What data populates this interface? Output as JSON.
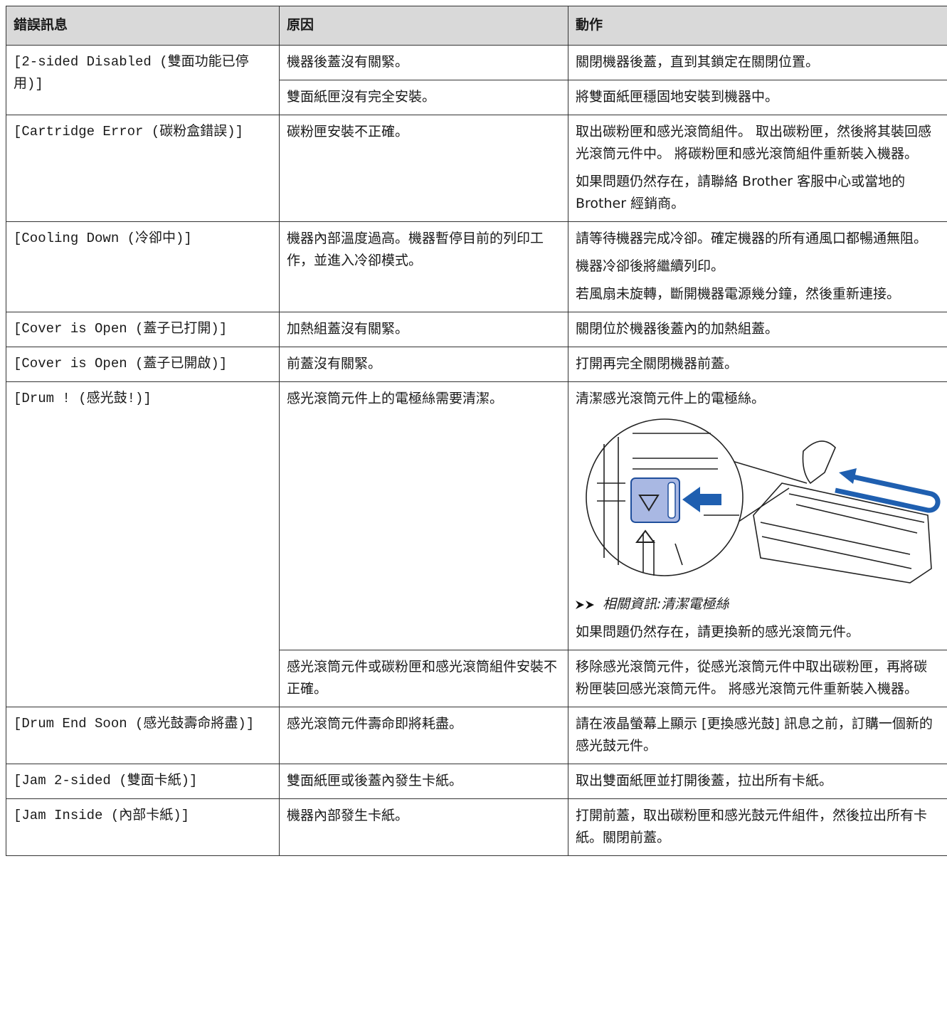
{
  "table": {
    "headers": [
      "錯誤訊息",
      "原因",
      "動作"
    ],
    "rows": [
      {
        "message": "[2-sided Disabled (雙面功能已停用)]",
        "entries": [
          {
            "cause": "機器後蓋沒有關緊。",
            "action": [
              "關閉機器後蓋，直到其鎖定在關閉位置。"
            ]
          },
          {
            "cause": "雙面紙匣沒有完全安裝。",
            "action": [
              "將雙面紙匣穩固地安裝到機器中。"
            ]
          }
        ]
      },
      {
        "message": "[Cartridge Error (碳粉盒錯誤)]",
        "entries": [
          {
            "cause": "碳粉匣安裝不正確。",
            "action": [
              "取出碳粉匣和感光滾筒組件。 取出碳粉匣，然後將其裝回感光滾筒元件中。 將碳粉匣和感光滾筒組件重新裝入機器。",
              "如果問題仍然存在，請聯絡 Brother 客服中心或當地的 Brother 經銷商。"
            ]
          }
        ]
      },
      {
        "message": "[Cooling Down (冷卻中)]",
        "entries": [
          {
            "cause": "機器內部溫度過高。機器暫停目前的列印工作，並進入冷卻模式。",
            "action": [
              "請等待機器完成冷卻。確定機器的所有通風口都暢通無阻。",
              "機器冷卻後將繼續列印。",
              "若風扇未旋轉，斷開機器電源幾分鐘，然後重新連接。"
            ]
          }
        ]
      },
      {
        "message": "[Cover is Open (蓋子已打開)]",
        "entries": [
          {
            "cause": "加熱組蓋沒有關緊。",
            "action": [
              "關閉位於機器後蓋內的加熱組蓋。"
            ]
          }
        ]
      },
      {
        "message": "[Cover is Open (蓋子已開啟)]",
        "entries": [
          {
            "cause": "前蓋沒有關緊。",
            "action": [
              "打開再完全關閉機器前蓋。"
            ]
          }
        ]
      },
      {
        "message": "[Drum ! (感光鼓!)]",
        "entries": [
          {
            "cause": "感光滾筒元件上的電極絲需要清潔。",
            "action": [
              "清潔感光滾筒元件上的電極絲。"
            ],
            "related_link": "相關資訊:清潔電極絲",
            "action_after": [
              "如果問題仍然存在，請更換新的感光滾筒元件。"
            ]
          },
          {
            "cause": "感光滾筒元件或碳粉匣和感光滾筒組件安裝不正確。",
            "action": [
              "移除感光滾筒元件，從感光滾筒元件中取出碳粉匣，再將碳粉匣裝回感光滾筒元件。 將感光滾筒元件重新裝入機器。"
            ]
          }
        ]
      },
      {
        "message": "[Drum End Soon (感光鼓壽命將盡)]",
        "entries": [
          {
            "cause": "感光滾筒元件壽命即將耗盡。",
            "action": [
              "請在液晶螢幕上顯示 [更換感光鼓] 訊息之前，訂購一個新的感光鼓元件。"
            ]
          }
        ]
      },
      {
        "message": "[Jam 2-sided (雙面卡紙)]",
        "entries": [
          {
            "cause": "雙面紙匣或後蓋內發生卡紙。",
            "action": [
              "取出雙面紙匣並打開後蓋，拉出所有卡紙。"
            ]
          }
        ]
      },
      {
        "message": "[Jam Inside (內部卡紙)]",
        "entries": [
          {
            "cause": "機器內部發生卡紙。",
            "action": [
              "打開前蓋，取出碳粉匣和感光鼓元件組件，然後拉出所有卡紙。關閉前蓋。"
            ]
          }
        ]
      }
    ]
  }
}
